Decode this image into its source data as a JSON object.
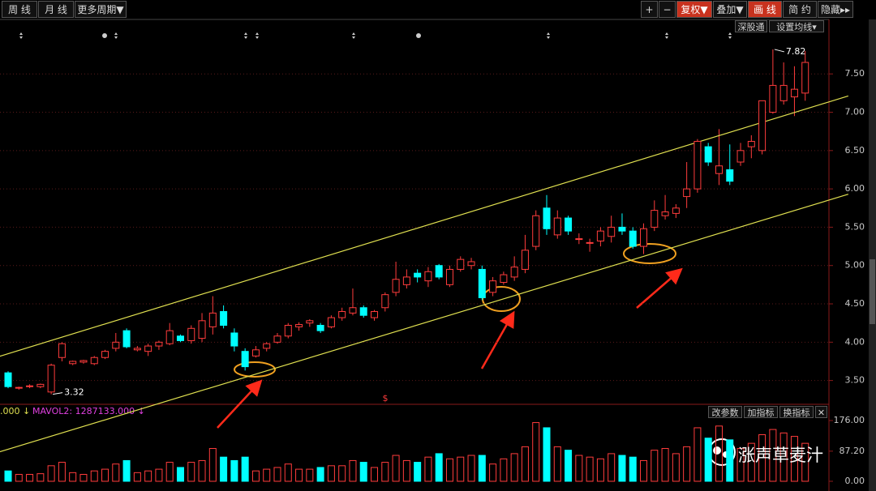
{
  "toolbar": {
    "left": [
      "周 线",
      "月 线",
      "更多周期▼"
    ],
    "right": [
      "+",
      "−",
      "复权▼",
      "叠加▼",
      "画 线",
      "简 约",
      "隐藏▸▸"
    ]
  },
  "chart_tools": [
    "深股通",
    "设置均线▾"
  ],
  "volume_header": {
    "left": ".000 ↓",
    "mavol2": "MAVOL2: 1287133.000 ↓"
  },
  "volume_tools": [
    "改参数",
    "加指标",
    "换指标",
    "✕"
  ],
  "watermark": "涨声草麦汁",
  "marker_text": "$",
  "chart_data": {
    "type": "candlestick",
    "up_color": "#ff3c3c",
    "down_color": "#00ffff",
    "open": [
      3.6,
      3.4,
      3.42,
      3.42,
      3.35,
      3.8,
      3.72,
      3.74,
      3.72,
      3.8,
      3.92,
      4.15,
      3.9,
      3.88,
      3.95,
      3.98,
      4.08,
      4.02,
      4.05,
      4.2,
      4.4,
      4.12,
      3.88,
      3.82,
      3.92,
      4.0,
      4.08,
      4.2,
      4.25,
      4.22,
      4.2,
      4.32,
      4.38,
      4.45,
      4.32,
      4.45,
      4.65,
      4.75,
      4.9,
      4.8,
      5.0,
      4.75,
      4.95,
      5.0,
      4.95,
      4.65,
      4.78,
      4.85,
      4.95,
      5.25,
      5.75,
      5.4,
      5.62,
      5.35,
      5.3,
      5.32,
      5.38,
      5.5,
      5.45,
      5.25,
      5.5,
      5.65,
      5.68,
      5.9,
      6.0,
      6.55,
      6.2,
      6.25,
      6.35,
      6.55,
      6.5,
      7.0,
      7.15,
      7.2,
      7.25
    ],
    "high": [
      3.62,
      3.42,
      3.45,
      3.46,
      3.72,
      4.0,
      3.76,
      3.77,
      3.82,
      3.9,
      4.12,
      4.18,
      3.95,
      3.98,
      4.02,
      4.25,
      4.1,
      4.22,
      4.38,
      4.6,
      4.48,
      4.18,
      3.92,
      3.95,
      4.0,
      4.12,
      4.25,
      4.26,
      4.3,
      4.25,
      4.35,
      4.45,
      4.7,
      4.48,
      4.42,
      4.65,
      5.05,
      4.95,
      4.95,
      4.98,
      5.02,
      5.0,
      5.12,
      5.1,
      5.0,
      4.85,
      4.92,
      5.12,
      5.4,
      5.72,
      5.92,
      5.72,
      5.65,
      5.42,
      5.35,
      5.5,
      5.65,
      5.68,
      5.5,
      5.55,
      5.85,
      5.92,
      5.8,
      6.35,
      6.65,
      6.6,
      6.78,
      6.58,
      6.6,
      6.7,
      7.15,
      7.82,
      7.65,
      7.6,
      7.8
    ],
    "low": [
      3.4,
      3.38,
      3.4,
      3.4,
      3.32,
      3.75,
      3.7,
      3.72,
      3.7,
      3.78,
      3.88,
      3.92,
      3.88,
      3.82,
      3.9,
      3.96,
      4.0,
      3.98,
      4.0,
      4.1,
      4.18,
      3.88,
      3.63,
      3.8,
      3.88,
      3.98,
      4.05,
      4.15,
      4.2,
      4.12,
      4.18,
      4.28,
      4.35,
      4.32,
      4.28,
      4.4,
      4.6,
      4.7,
      4.78,
      4.72,
      4.82,
      4.72,
      4.92,
      4.95,
      4.55,
      4.6,
      4.75,
      4.8,
      4.9,
      5.2,
      5.4,
      5.35,
      5.4,
      5.28,
      5.18,
      5.25,
      5.3,
      5.4,
      5.22,
      5.15,
      5.45,
      5.6,
      5.62,
      5.75,
      5.95,
      6.3,
      6.05,
      6.05,
      6.3,
      6.4,
      6.45,
      6.98,
      7.1,
      6.95,
      7.15
    ],
    "close": [
      3.42,
      3.41,
      3.43,
      3.45,
      3.7,
      3.98,
      3.75,
      3.76,
      3.8,
      3.88,
      4.0,
      3.94,
      3.92,
      3.95,
      4.0,
      4.15,
      4.02,
      4.18,
      4.28,
      4.38,
      4.22,
      3.95,
      3.68,
      3.9,
      3.98,
      4.08,
      4.22,
      4.23,
      4.28,
      4.15,
      4.32,
      4.4,
      4.45,
      4.35,
      4.4,
      4.62,
      4.82,
      4.85,
      4.85,
      4.92,
      4.85,
      4.95,
      5.08,
      5.05,
      4.58,
      4.8,
      4.88,
      4.98,
      5.2,
      5.65,
      5.48,
      5.62,
      5.45,
      5.35,
      5.3,
      5.45,
      5.5,
      5.45,
      5.25,
      5.48,
      5.72,
      5.7,
      5.75,
      6.0,
      6.62,
      6.35,
      6.3,
      6.1,
      6.5,
      6.62,
      7.15,
      7.35,
      7.35,
      7.3,
      7.65
    ],
    "volume": [
      30,
      20,
      20,
      22,
      45,
      55,
      25,
      20,
      30,
      35,
      50,
      60,
      25,
      30,
      35,
      55,
      40,
      55,
      60,
      95,
      70,
      60,
      70,
      30,
      35,
      40,
      50,
      35,
      35,
      40,
      45,
      45,
      60,
      55,
      40,
      55,
      75,
      60,
      55,
      70,
      80,
      65,
      70,
      75,
      75,
      50,
      65,
      80,
      100,
      170,
      155,
      100,
      90,
      75,
      70,
      65,
      80,
      75,
      70,
      60,
      90,
      95,
      80,
      100,
      155,
      125,
      160,
      120,
      95,
      110,
      135,
      150,
      140,
      130,
      110
    ],
    "ylim": [
      3.2,
      8.2
    ],
    "yticks": [
      {
        "value": 3.5,
        "label": "3.50"
      },
      {
        "value": 4,
        "label": "4.00"
      },
      {
        "value": 4.5,
        "label": "4.50"
      },
      {
        "value": 5,
        "label": "5.00"
      },
      {
        "value": 5.5,
        "label": "5.50"
      },
      {
        "value": 6,
        "label": "6.00"
      },
      {
        "value": 6.5,
        "label": "6.50"
      },
      {
        "value": 7,
        "label": "7.00"
      },
      {
        "value": 7.5,
        "label": "7.50"
      }
    ],
    "volume_ylim": [
      0,
      176
    ],
    "volume_yticks": [
      {
        "value": 0,
        "label": "0.00"
      },
      {
        "value": 87.2,
        "label": "87.20"
      },
      {
        "value": 176,
        "label": "176.00"
      }
    ],
    "trendlines": [
      {
        "color": "#e0e050",
        "from": [
          0,
          3.85
        ],
        "to": [
          74,
          7.04
        ]
      },
      {
        "color": "#e0e050",
        "from": [
          14,
          3.2
        ],
        "to": [
          74,
          5.76
        ]
      }
    ],
    "annotations": [
      {
        "index": 71,
        "value": 7.82
      },
      {
        "index": 4,
        "value": 3.32
      }
    ]
  }
}
